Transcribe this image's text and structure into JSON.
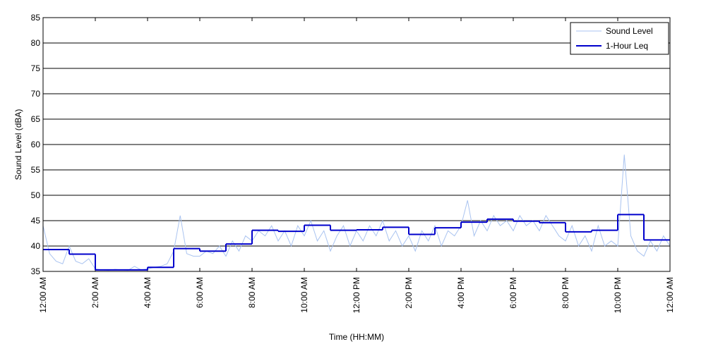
{
  "chart_data": {
    "type": "line",
    "ylabel": "Sound Level (dBA)",
    "xlabel": "Time (HH:MM)",
    "xlim": [
      0,
      24
    ],
    "ylim": [
      35,
      85
    ],
    "yticks": [
      35,
      40,
      45,
      50,
      55,
      60,
      65,
      70,
      75,
      80,
      85
    ],
    "xticks": [
      {
        "value": 0,
        "label": "12:00 AM"
      },
      {
        "value": 2,
        "label": "2:00 AM"
      },
      {
        "value": 4,
        "label": "4:00 AM"
      },
      {
        "value": 6,
        "label": "6:00 AM"
      },
      {
        "value": 8,
        "label": "8:00 AM"
      },
      {
        "value": 10,
        "label": "10:00 AM"
      },
      {
        "value": 12,
        "label": "12:00 PM"
      },
      {
        "value": 14,
        "label": "2:00 PM"
      },
      {
        "value": 16,
        "label": "4:00 PM"
      },
      {
        "value": 18,
        "label": "6:00 PM"
      },
      {
        "value": 20,
        "label": "8:00 PM"
      },
      {
        "value": 22,
        "label": "10:00 PM"
      },
      {
        "value": 24,
        "label": "12:00 AM"
      }
    ],
    "grid": true,
    "legend": "upper right",
    "series": [
      {
        "name": "Sound Level",
        "color": "#a9c3f0",
        "style": "line",
        "x": [
          0,
          0.25,
          0.5,
          0.75,
          1,
          1.25,
          1.5,
          1.75,
          2,
          2.25,
          2.5,
          2.75,
          3,
          3.25,
          3.5,
          3.75,
          4,
          4.25,
          4.5,
          4.75,
          5,
          5.25,
          5.5,
          5.75,
          6,
          6.25,
          6.5,
          6.75,
          7,
          7.25,
          7.5,
          7.75,
          8,
          8.25,
          8.5,
          8.75,
          9,
          9.25,
          9.5,
          9.75,
          10,
          10.25,
          10.5,
          10.75,
          11,
          11.25,
          11.5,
          11.75,
          12,
          12.25,
          12.5,
          12.75,
          13,
          13.25,
          13.5,
          13.75,
          14,
          14.25,
          14.5,
          14.75,
          15,
          15.25,
          15.5,
          15.75,
          16,
          16.25,
          16.5,
          16.75,
          17,
          17.25,
          17.5,
          17.75,
          18,
          18.25,
          18.5,
          18.75,
          19,
          19.25,
          19.5,
          19.75,
          20,
          20.25,
          20.5,
          20.75,
          21,
          21.25,
          21.5,
          21.75,
          22,
          22.25,
          22.5,
          22.75,
          23,
          23.25,
          23.5,
          23.75,
          24
        ],
        "values": [
          44,
          38.5,
          37,
          36.5,
          40,
          37,
          36.5,
          37.5,
          35.5,
          35.3,
          35.2,
          35.4,
          35.3,
          35.2,
          36,
          35.3,
          35.5,
          35.8,
          36,
          36.5,
          39,
          46,
          38.5,
          38,
          38,
          39,
          38.5,
          40,
          38,
          41,
          39,
          42,
          41,
          43,
          42,
          44,
          41,
          43,
          40,
          44,
          42,
          45,
          41,
          43,
          39,
          42,
          44,
          40,
          43,
          41,
          44,
          42,
          45,
          41,
          43,
          40,
          42,
          39,
          43,
          41,
          44,
          40,
          43,
          42,
          44,
          49,
          42,
          45,
          43,
          46,
          44,
          45,
          43,
          46,
          44,
          45,
          43,
          46,
          44,
          42,
          41,
          44,
          40,
          42,
          39,
          44,
          40,
          41,
          40,
          58,
          42,
          39,
          38,
          41,
          39,
          42,
          40
        ]
      },
      {
        "name": "1-Hour Leq",
        "color": "#0000cc",
        "style": "step",
        "x": [
          0,
          1,
          2,
          3,
          4,
          5,
          6,
          7,
          8,
          9,
          10,
          11,
          12,
          13,
          14,
          15,
          16,
          17,
          18,
          19,
          20,
          21,
          22,
          23
        ],
        "values": [
          39.3,
          38.4,
          35.3,
          35.3,
          35.8,
          39.5,
          39.0,
          40.4,
          43.1,
          42.9,
          44.1,
          43.1,
          43.2,
          43.7,
          42.3,
          43.6,
          44.7,
          45.3,
          44.9,
          44.6,
          42.8,
          43.1,
          46.2,
          41.2
        ]
      }
    ]
  }
}
